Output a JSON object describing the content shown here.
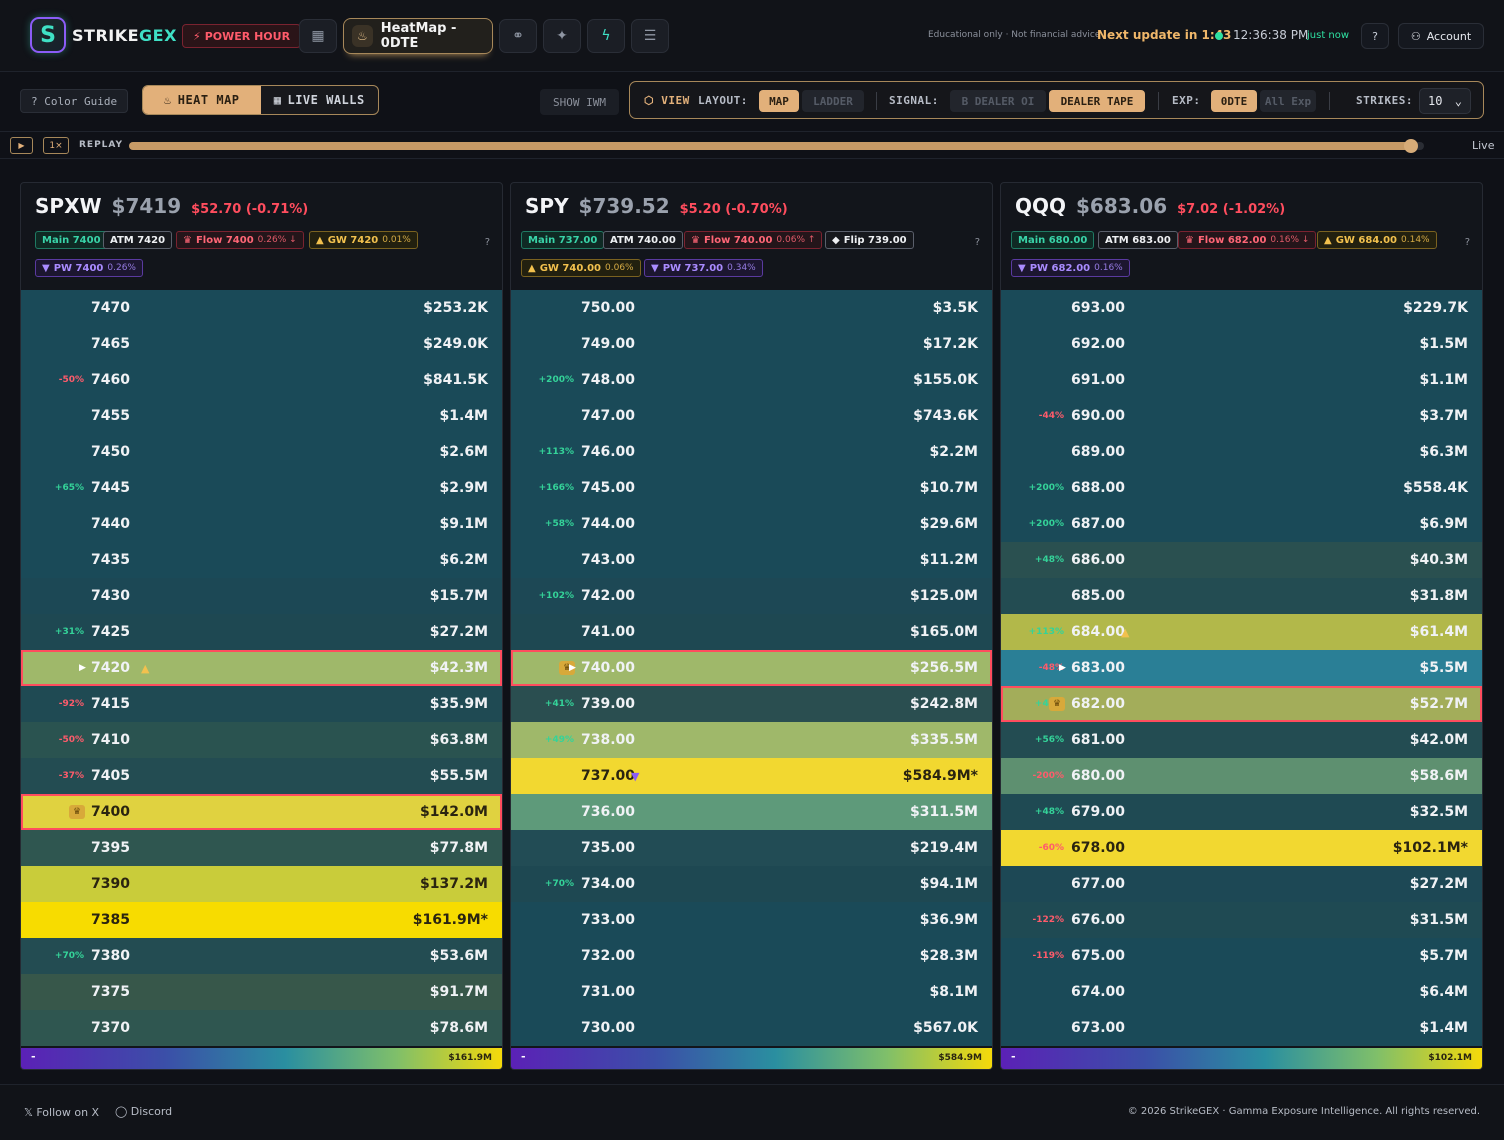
{
  "brand": {
    "logo_glyph": "S",
    "name_a": "STRIKE",
    "name_b": "GEX"
  },
  "header": {
    "power_hour": "POWER HOUR",
    "nav_active": "HeatMap - 0DTE",
    "disclaimer": "Educational only · Not financial advice",
    "next_update": "Next update in 1:43",
    "clock": "12:36:38 PM",
    "status": "just now",
    "help": "?",
    "account": "Account"
  },
  "toolbar": {
    "color_guide": "? Color Guide",
    "heat_map": "HEAT MAP",
    "live_walls": "LIVE WALLS",
    "show_iwm": "SHOW IWM",
    "view": "VIEW",
    "layout_label": "LAYOUT:",
    "layout_map": "MAP",
    "layout_ladder": "LADDER",
    "signal_label": "SIGNAL:",
    "signal_oi": "B DEALER OI",
    "signal_tape": "DEALER TAPE",
    "exp_label": "EXP:",
    "exp_0dte": "0DTE",
    "exp_all": "All Exp",
    "strikes_label": "STRIKES:",
    "strikes_value": "10"
  },
  "replay": {
    "play": "▶",
    "speed": "1×",
    "label": "REPLAY",
    "progress": 0.99,
    "live": "Live"
  },
  "panels": [
    {
      "symbol": "SPXW",
      "price": "$7419",
      "change": "$52.70 (-0.71%)",
      "tags": {
        "main": "Main 7400",
        "atm": "ATM 7420",
        "flow": "Flow 7400",
        "flow_pct": "0.26% ↓",
        "gw": "GW 7420",
        "gw_pct": "0.01%",
        "pw": "PW 7400",
        "pw_pct": "0.26%"
      },
      "scale_lo": "-",
      "scale_hi": "$161.9M",
      "rows": [
        {
          "chg": "",
          "strike": "7470",
          "val": "$253.2K",
          "bg": "#1a4a58"
        },
        {
          "chg": "",
          "strike": "7465",
          "val": "$249.0K",
          "bg": "#1a4a58"
        },
        {
          "chg": "-50%",
          "strike": "7460",
          "val": "$841.5K",
          "bg": "#1a4a58"
        },
        {
          "chg": "",
          "strike": "7455",
          "val": "$1.4M",
          "bg": "#1a4a58"
        },
        {
          "chg": "",
          "strike": "7450",
          "val": "$2.6M",
          "bg": "#1a4a58"
        },
        {
          "chg": "+65%",
          "strike": "7445",
          "val": "$2.9M",
          "bg": "#1a4a58"
        },
        {
          "chg": "",
          "strike": "7440",
          "val": "$9.1M",
          "bg": "#1a4a58"
        },
        {
          "chg": "",
          "strike": "7435",
          "val": "$6.2M",
          "bg": "#1a4a58"
        },
        {
          "chg": "",
          "strike": "7430",
          "val": "$15.7M",
          "bg": "#1c4855"
        },
        {
          "chg": "+31%",
          "strike": "7425",
          "val": "$27.2M",
          "bg": "#1e4852"
        },
        {
          "chg": "",
          "strike": "7420",
          "val": "$42.3M",
          "bg": "#9fb86a",
          "caret": true,
          "marker": "▲",
          "markerColor": "#f2c14e",
          "outline": true
        },
        {
          "chg": "-92%",
          "strike": "7415",
          "val": "$35.9M",
          "bg": "#1f4a53"
        },
        {
          "chg": "-50%",
          "strike": "7410",
          "val": "$63.8M",
          "bg": "#2a5350"
        },
        {
          "chg": "-37%",
          "strike": "7405",
          "val": "$55.5M",
          "bg": "#234c52"
        },
        {
          "chg": "",
          "strike": "7400",
          "val": "$142.0M",
          "bg": "#e0d240",
          "crown": true,
          "outline": true,
          "dark": true
        },
        {
          "chg": "",
          "strike": "7395",
          "val": "$77.8M",
          "bg": "#2f5650"
        },
        {
          "chg": "",
          "strike": "7390",
          "val": "$137.2M",
          "bg": "#c9cc3a",
          "dark": true
        },
        {
          "chg": "",
          "strike": "7385",
          "val": "$161.9M*",
          "bg": "#f7dc00",
          "dark": true
        },
        {
          "chg": "+70%",
          "strike": "7380",
          "val": "$53.6M",
          "bg": "#234c52"
        },
        {
          "chg": "",
          "strike": "7375",
          "val": "$91.7M",
          "bg": "#37574a"
        },
        {
          "chg": "",
          "strike": "7370",
          "val": "$78.6M",
          "bg": "#2f5650"
        }
      ]
    },
    {
      "symbol": "SPY",
      "price": "$739.52",
      "change": "$5.20 (-0.70%)",
      "tags": {
        "main": "Main 737.00",
        "atm": "ATM 740.00",
        "flow": "Flow 740.00",
        "flow_pct": "0.06% ↑",
        "flip": "Flip 739.00",
        "gw": "GW 740.00",
        "gw_pct": "0.06%",
        "pw": "PW 737.00",
        "pw_pct": "0.34%"
      },
      "scale_lo": "-",
      "scale_hi": "$584.9M",
      "rows": [
        {
          "chg": "",
          "strike": "750.00",
          "val": "$3.5K",
          "bg": "#1a4a58"
        },
        {
          "chg": "",
          "strike": "749.00",
          "val": "$17.2K",
          "bg": "#1a4a58"
        },
        {
          "chg": "+200%",
          "strike": "748.00",
          "val": "$155.0K",
          "bg": "#1a4a58"
        },
        {
          "chg": "",
          "strike": "747.00",
          "val": "$743.6K",
          "bg": "#1a4a58"
        },
        {
          "chg": "+113%",
          "strike": "746.00",
          "val": "$2.2M",
          "bg": "#1a4a58"
        },
        {
          "chg": "+166%",
          "strike": "745.00",
          "val": "$10.7M",
          "bg": "#1a4a58"
        },
        {
          "chg": "+58%",
          "strike": "744.00",
          "val": "$29.6M",
          "bg": "#1a4a58"
        },
        {
          "chg": "",
          "strike": "743.00",
          "val": "$11.2M",
          "bg": "#1a4a58"
        },
        {
          "chg": "+102%",
          "strike": "742.00",
          "val": "$125.0M",
          "bg": "#1d4855"
        },
        {
          "chg": "",
          "strike": "741.00",
          "val": "$165.0M",
          "bg": "#1e4852"
        },
        {
          "chg": "",
          "strike": "740.00",
          "val": "$256.5M",
          "bg": "#9fb86a",
          "caret": true,
          "crown": true,
          "outline": true
        },
        {
          "chg": "+41%",
          "strike": "739.00",
          "val": "$242.8M",
          "bg": "#2a4e50"
        },
        {
          "chg": "+49%",
          "strike": "738.00",
          "val": "$335.5M",
          "bg": "#9fb86a"
        },
        {
          "chg": "",
          "strike": "737.00",
          "val": "$584.9M*",
          "bg": "#f2d830",
          "marker": "▼",
          "markerColor": "#8b5cf6",
          "dark": true
        },
        {
          "chg": "",
          "strike": "736.00",
          "val": "$311.5M",
          "bg": "#5e9a7a"
        },
        {
          "chg": "",
          "strike": "735.00",
          "val": "$219.4M",
          "bg": "#224c55"
        },
        {
          "chg": "+70%",
          "strike": "734.00",
          "val": "$94.1M",
          "bg": "#1e4852"
        },
        {
          "chg": "",
          "strike": "733.00",
          "val": "$36.9M",
          "bg": "#1a4a58"
        },
        {
          "chg": "",
          "strike": "732.00",
          "val": "$28.3M",
          "bg": "#1a4a58"
        },
        {
          "chg": "",
          "strike": "731.00",
          "val": "$8.1M",
          "bg": "#1a4a58"
        },
        {
          "chg": "",
          "strike": "730.00",
          "val": "$567.0K",
          "bg": "#1a4a58"
        }
      ]
    },
    {
      "symbol": "QQQ",
      "price": "$683.06",
      "change": "$7.02 (-1.02%)",
      "tags": {
        "main": "Main 680.00",
        "atm": "ATM 683.00",
        "flow": "Flow 682.00",
        "flow_pct": "0.16% ↓",
        "gw": "GW 684.00",
        "gw_pct": "0.14%",
        "pw": "PW 682.00",
        "pw_pct": "0.16%"
      },
      "scale_lo": "-",
      "scale_hi": "$102.1M",
      "rows": [
        {
          "chg": "",
          "strike": "693.00",
          "val": "$229.7K",
          "bg": "#1a4a58"
        },
        {
          "chg": "",
          "strike": "692.00",
          "val": "$1.5M",
          "bg": "#1a4a58"
        },
        {
          "chg": "",
          "strike": "691.00",
          "val": "$1.1M",
          "bg": "#1a4a58"
        },
        {
          "chg": "-44%",
          "strike": "690.00",
          "val": "$3.7M",
          "bg": "#1a4a58"
        },
        {
          "chg": "",
          "strike": "689.00",
          "val": "$6.3M",
          "bg": "#1a4a58"
        },
        {
          "chg": "+200%",
          "strike": "688.00",
          "val": "$558.4K",
          "bg": "#1a4a58"
        },
        {
          "chg": "+200%",
          "strike": "687.00",
          "val": "$6.9M",
          "bg": "#1a4a58"
        },
        {
          "chg": "+48%",
          "strike": "686.00",
          "val": "$40.3M",
          "bg": "#2a5050"
        },
        {
          "chg": "",
          "strike": "685.00",
          "val": "$31.8M",
          "bg": "#234c52"
        },
        {
          "chg": "+113%",
          "strike": "684.00",
          "val": "$61.4M",
          "bg": "#b2b84a",
          "marker": "▲",
          "markerColor": "#f2c14e"
        },
        {
          "chg": "-48%",
          "strike": "683.00",
          "val": "$5.5M",
          "bg": "#2a7f96",
          "caret": true
        },
        {
          "chg": "+40%",
          "strike": "682.00",
          "val": "$52.7M",
          "bg": "#a3ad5a",
          "crown": true,
          "outline": true
        },
        {
          "chg": "+56%",
          "strike": "681.00",
          "val": "$42.0M",
          "bg": "#234c52"
        },
        {
          "chg": "-200%",
          "strike": "680.00",
          "val": "$58.6M",
          "bg": "#5e9070"
        },
        {
          "chg": "+48%",
          "strike": "679.00",
          "val": "$32.5M",
          "bg": "#1f4a53"
        },
        {
          "chg": "-60%",
          "strike": "678.00",
          "val": "$102.1M*",
          "bg": "#f2d830",
          "dark": true
        },
        {
          "chg": "",
          "strike": "677.00",
          "val": "$27.2M",
          "bg": "#1d4855"
        },
        {
          "chg": "-122%",
          "strike": "676.00",
          "val": "$31.5M",
          "bg": "#1f4a53"
        },
        {
          "chg": "-119%",
          "strike": "675.00",
          "val": "$5.7M",
          "bg": "#1a4a58"
        },
        {
          "chg": "",
          "strike": "674.00",
          "val": "$6.4M",
          "bg": "#1a4a58"
        },
        {
          "chg": "",
          "strike": "673.00",
          "val": "$1.4M",
          "bg": "#1a4a58"
        }
      ]
    }
  ],
  "footer": {
    "follow_x": "𝕏 Follow on X",
    "discord": "◯ Discord",
    "copyright": "© 2026 StrikeGEX · Gamma Exposure Intelligence. All rights reserved."
  }
}
